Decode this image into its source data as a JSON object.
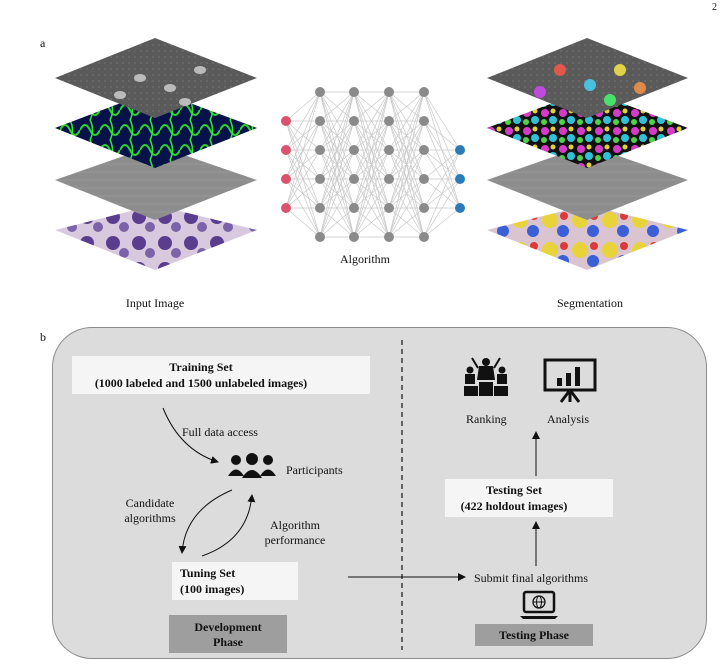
{
  "page_number": "2",
  "panel_a": {
    "label": "a",
    "input_caption": "Input Image",
    "algorithm_caption": "Algorithm",
    "output_caption": "Segmentation"
  },
  "panel_b": {
    "label": "b",
    "training_set": {
      "title": "Training Set",
      "subtitle": "(1000 labeled and 1500 unlabeled images)"
    },
    "full_data_access": "Full data access",
    "participants": "Participants",
    "candidate_algorithms": [
      "Candidate",
      "algorithms"
    ],
    "algorithm_performance": [
      "Algorithm",
      "performance"
    ],
    "tuning_set": {
      "title": "Tuning Set",
      "subtitle": "(100 images)"
    },
    "development_phase": [
      "Development",
      "Phase"
    ],
    "ranking": "Ranking",
    "analysis": "Analysis",
    "testing_set": {
      "title": "Testing Set",
      "subtitle": "(422 holdout images)"
    },
    "submit_final": "Submit final algorithms",
    "testing_phase": "Testing Phase"
  },
  "colors": {
    "input_node": "#d9536f",
    "hidden_node": "#8a8a8a",
    "output_node": "#2b7bb9",
    "panel_bg": "#dcdcdc",
    "phase_box": "#9e9e9e"
  }
}
